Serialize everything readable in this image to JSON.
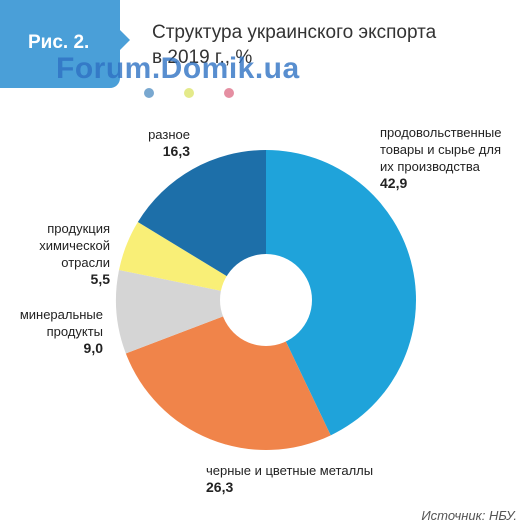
{
  "header": {
    "figure_label": "Рис. 2.",
    "title_line1": "Структура украинского экспорта",
    "title_line2": "в 2019 г., %"
  },
  "watermark": "Forum.Domik.ua",
  "legend_dot_colors": [
    "#79a8d0",
    "#e4ea8a",
    "#e58fa2"
  ],
  "chart_data": {
    "type": "pie",
    "donut": true,
    "categories": [
      "продовольственные товары и сырье для их производства",
      "черные и цветные металлы",
      "минеральные продукты",
      "продукция химической отрасли",
      "разное"
    ],
    "values": [
      42.9,
      26.3,
      9.0,
      5.5,
      16.3
    ],
    "value_labels": [
      "42,9",
      "26,3",
      "9,0",
      "5,5",
      "16,3"
    ],
    "colors": [
      "#1fa3da",
      "#f0844a",
      "#d5d5d5",
      "#f9ef77",
      "#1d6fa9"
    ],
    "start": "12 o'clock",
    "direction": "clockwise"
  },
  "labels": {
    "food": {
      "lines": [
        "продовольственные",
        "товары и сырье для",
        "их производства"
      ],
      "value": "42,9"
    },
    "metals": {
      "lines": [
        "черные и цветные металлы"
      ],
      "value": "26,3"
    },
    "mineral": {
      "lines": [
        "минеральные",
        "продукты"
      ],
      "value": "9,0"
    },
    "chemical": {
      "lines": [
        "продукция",
        "химической",
        "отрасли"
      ],
      "value": "5,5"
    },
    "misc": {
      "lines": [
        "разное"
      ],
      "value": "16,3"
    }
  },
  "source": "Источник: НБУ."
}
